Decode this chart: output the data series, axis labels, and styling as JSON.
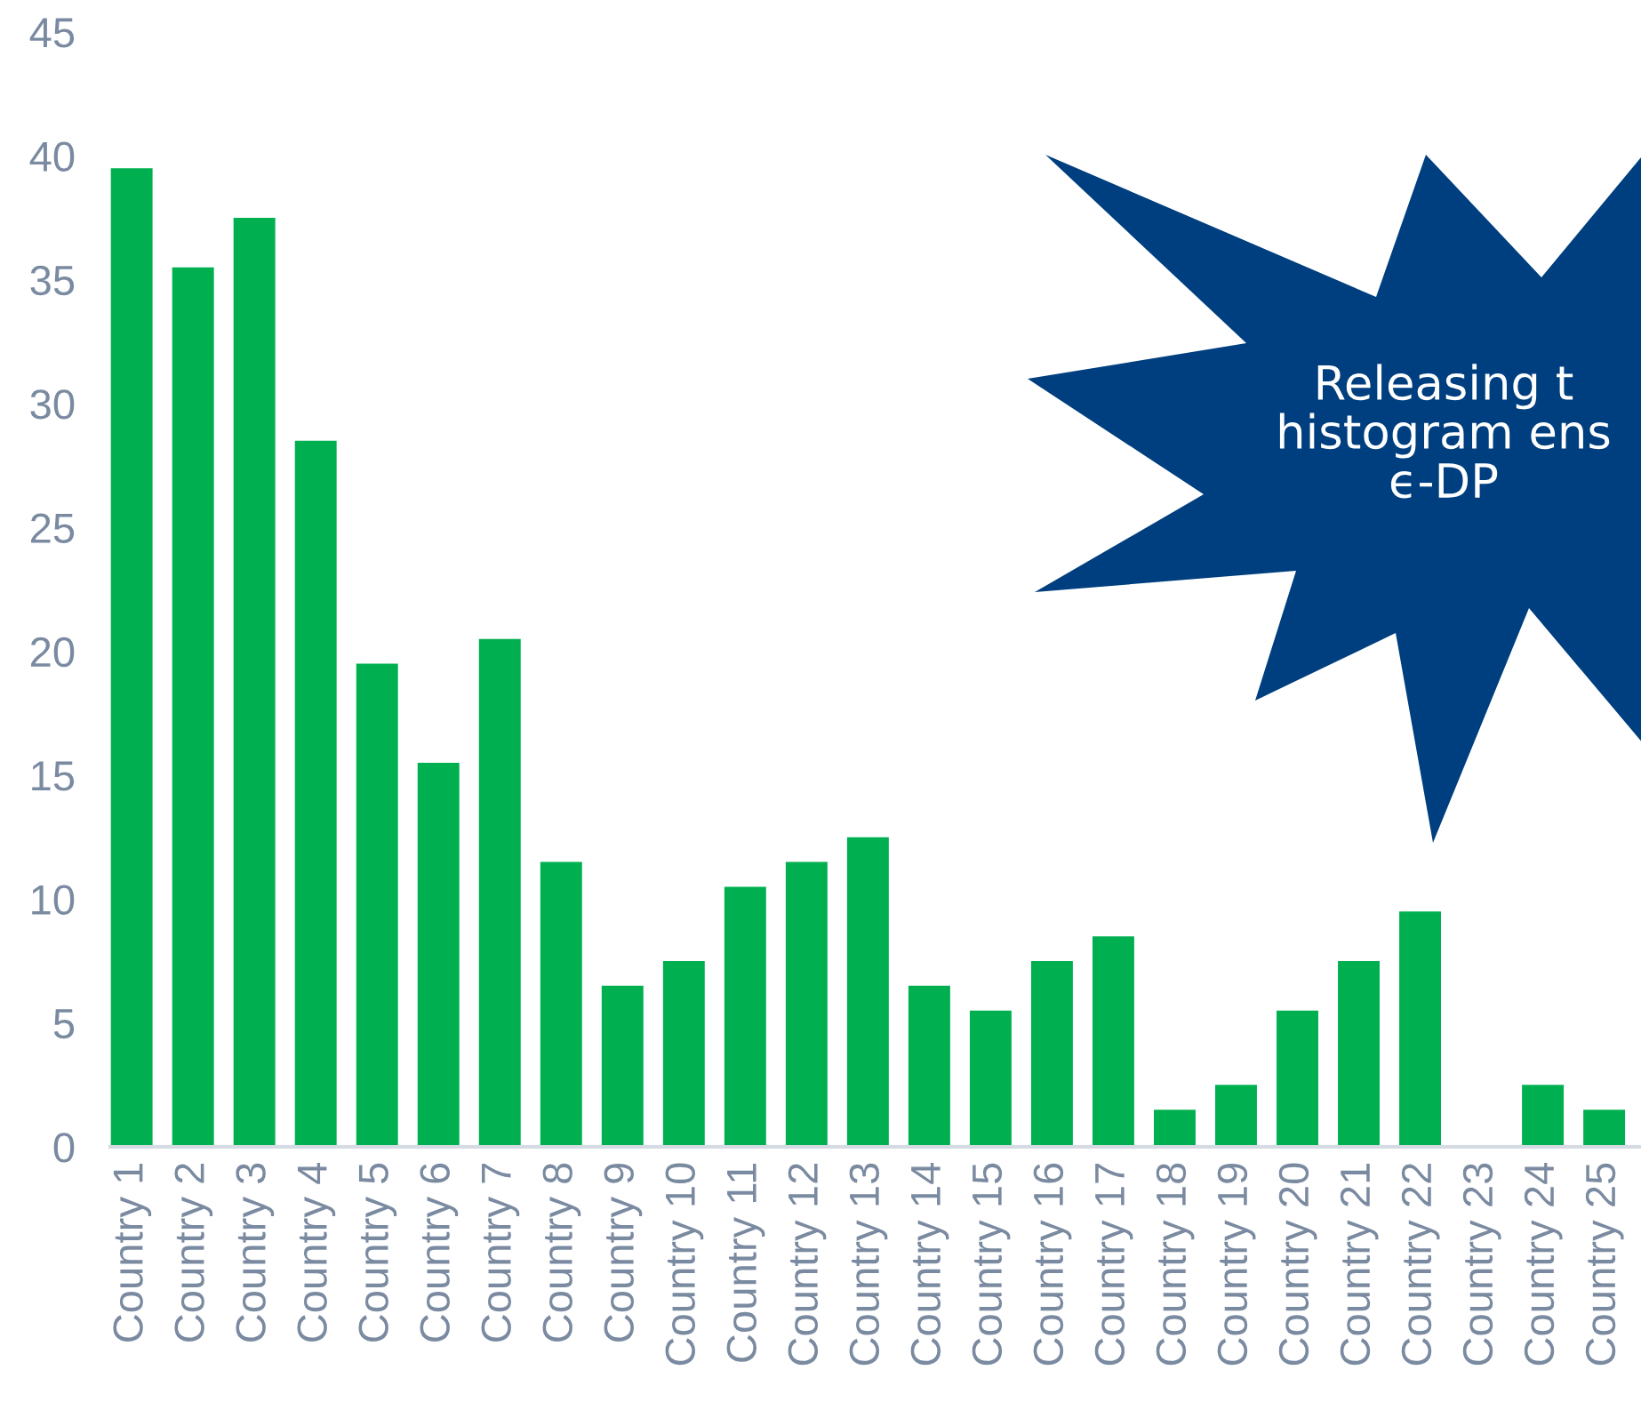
{
  "chart_data": {
    "type": "bar",
    "categories": [
      "Country 1",
      "Country 2",
      "Country 3",
      "Country 4",
      "Country 5",
      "Country 6",
      "Country 7",
      "Country 8",
      "Country 9",
      "Country 10",
      "Country 11",
      "Country 12",
      "Country 13",
      "Country 14",
      "Country 15",
      "Country 16",
      "Country 17",
      "Country 18",
      "Country 19",
      "Country 20",
      "Country 21",
      "Country 22",
      "Country 23",
      "Country 24",
      "Country 25"
    ],
    "values": [
      39.5,
      35.5,
      37.5,
      28.5,
      19.5,
      15.5,
      20.5,
      11.5,
      6.5,
      7.5,
      10.5,
      11.5,
      12.5,
      6.5,
      5.5,
      7.5,
      8.5,
      1.5,
      2.5,
      5.5,
      7.5,
      9.5,
      0,
      2.5,
      1.5
    ],
    "color": "#00b050",
    "ylim": [
      0,
      45
    ],
    "yticks": [
      0,
      5,
      10,
      15,
      20,
      25,
      30,
      35,
      40,
      45
    ],
    "grid": false,
    "annotations": [
      "Releasing t\nhistogram ens\nϵ-DP"
    ]
  }
}
